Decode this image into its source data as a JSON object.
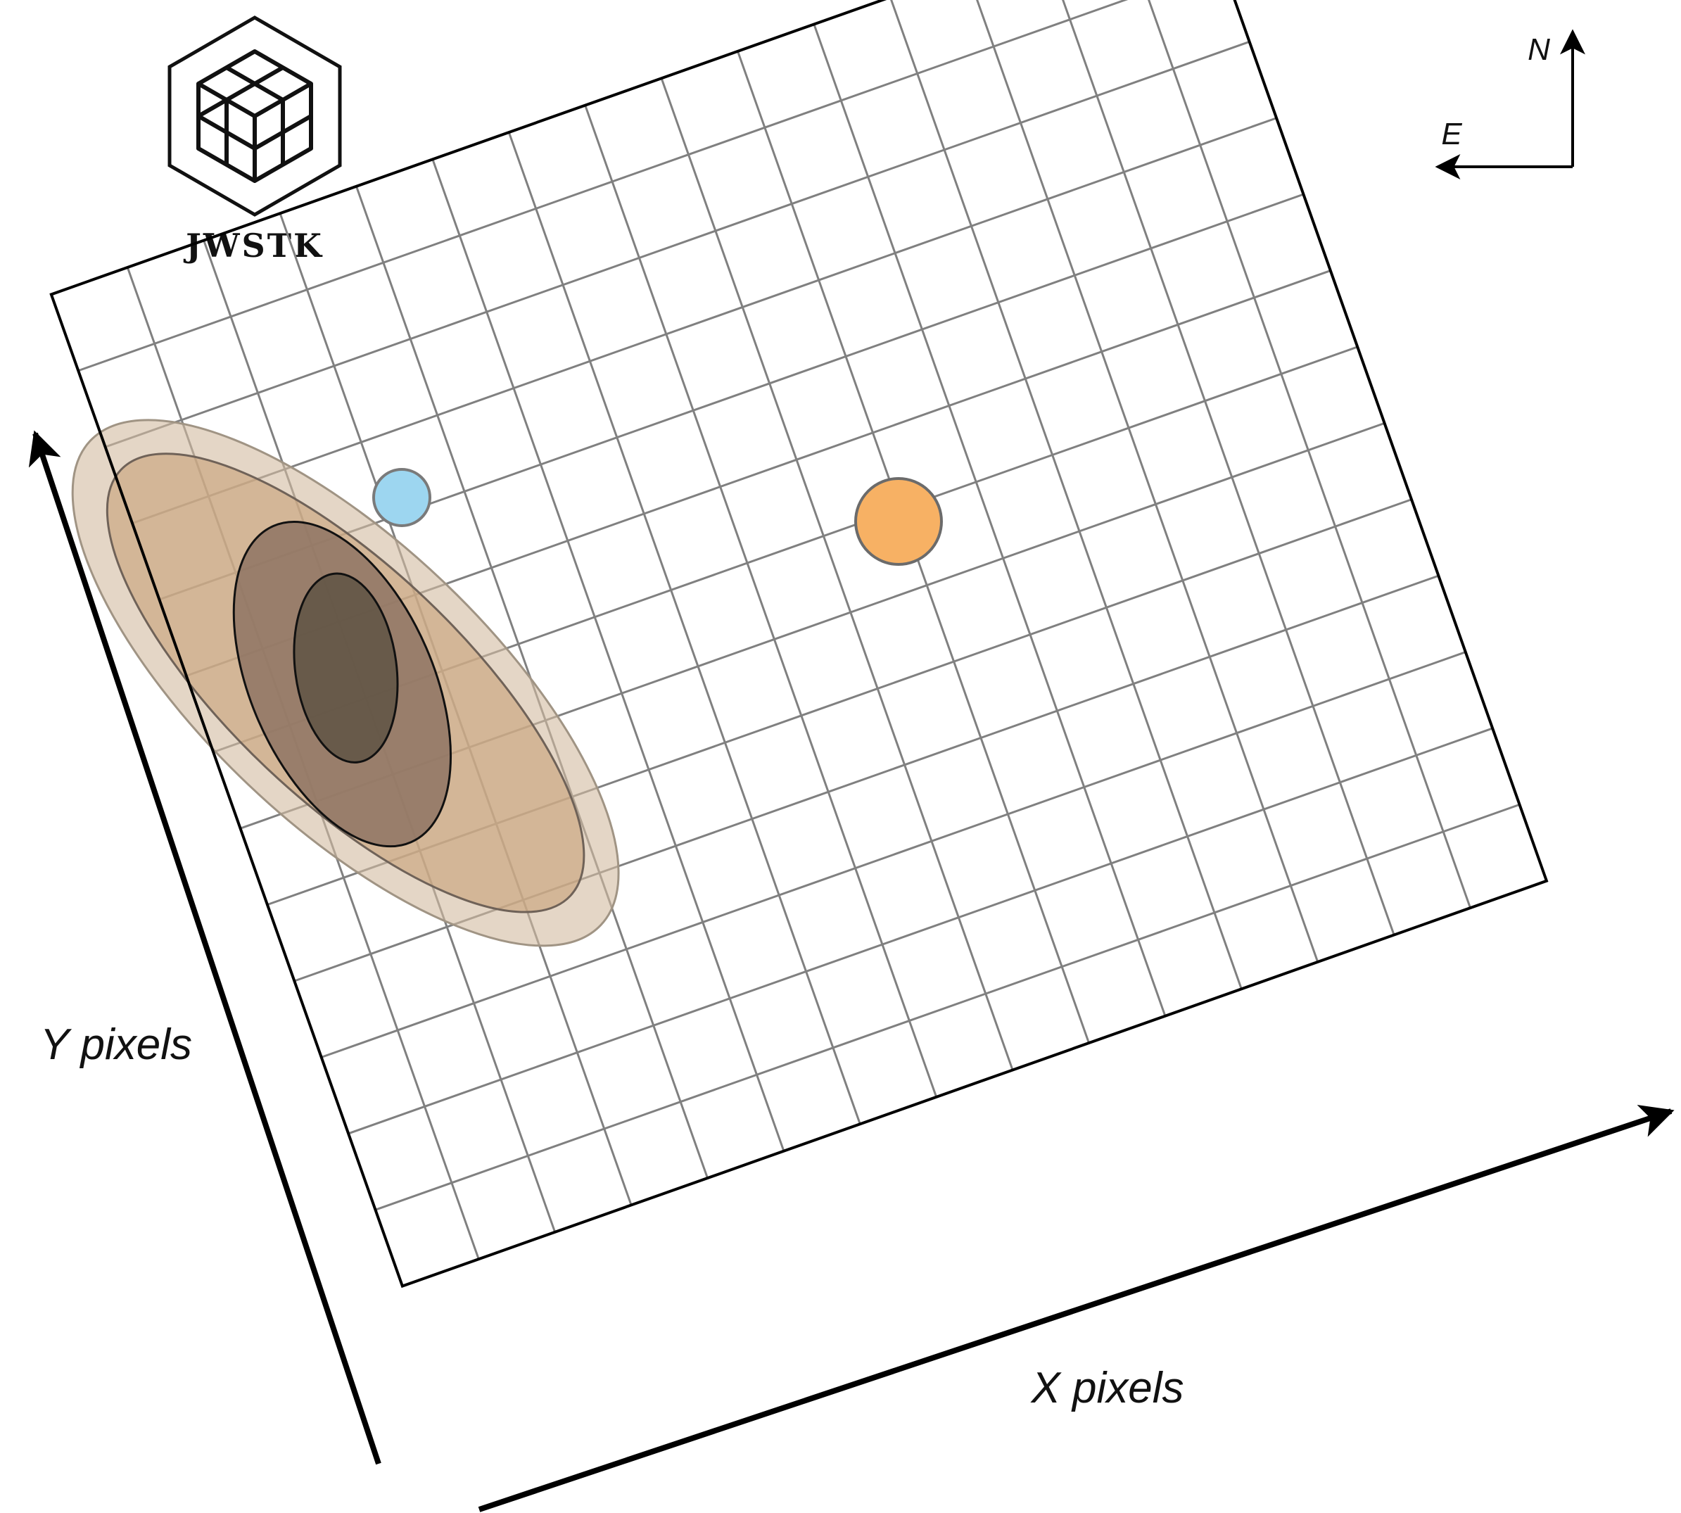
{
  "logo": {
    "text": "JWSTK",
    "icon": "hexagon-cubes-icon"
  },
  "compass": {
    "north_label": "N",
    "east_label": "E"
  },
  "axes": {
    "x_label": "X pixels",
    "y_label": "Y pixels"
  },
  "detector_grid": {
    "columns": 15,
    "rows": 13,
    "line_color": "#808080",
    "border_color": "#000000"
  },
  "galaxy": {
    "halo_color": "#d2bba0",
    "outer_isophote_color": "#c9a47e",
    "inner_isophote_color": "#8e7463",
    "core_color": "#5f5444"
  },
  "sources": [
    {
      "name": "blue-star",
      "color": "#9dd6f0"
    },
    {
      "name": "orange-star",
      "color": "#f7b164"
    }
  ]
}
